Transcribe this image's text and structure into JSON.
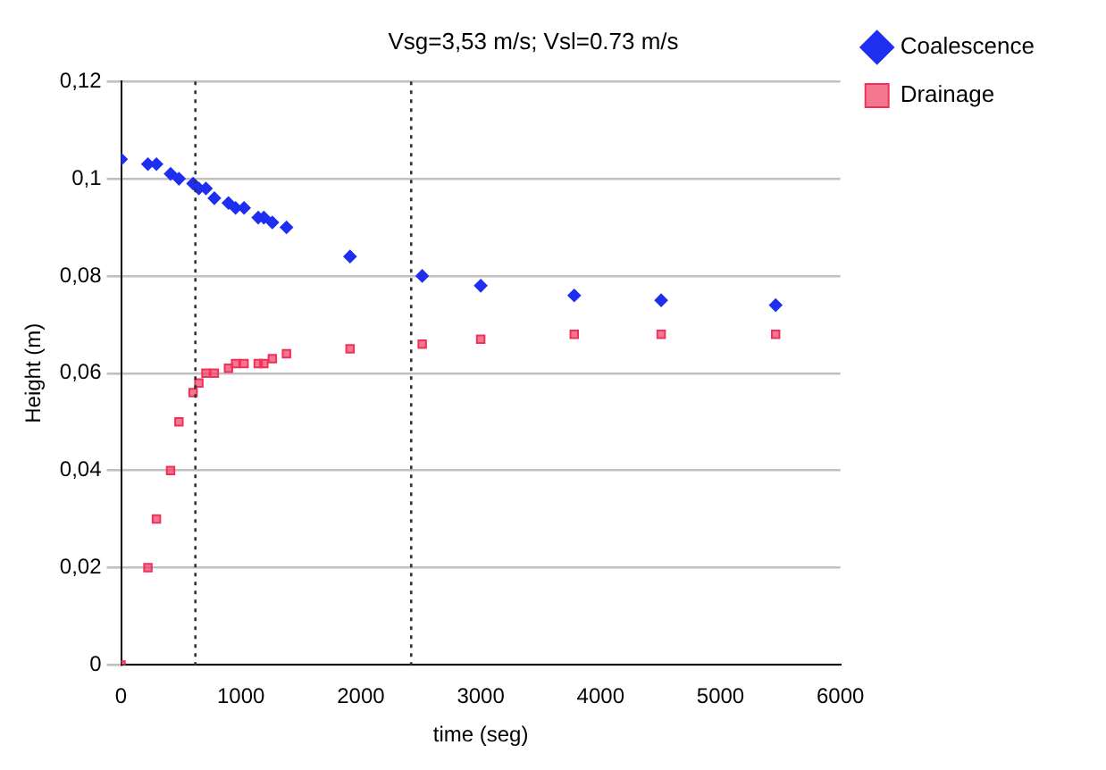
{
  "chart_data": {
    "type": "scatter",
    "title": "Vsg=3,53 m/s; Vsl=0.73 m/s",
    "xlabel": "time (seg)",
    "ylabel": "Height (m)",
    "x": [
      0,
      224,
      295,
      413,
      483,
      601,
      649,
      708,
      778,
      896,
      955,
      1026,
      1144,
      1191,
      1262,
      1380,
      1910,
      2512,
      3000,
      3780,
      4505,
      5460
    ],
    "series": [
      {
        "name": "Coalescence",
        "color": "#1f2ff0",
        "marker": "diamond",
        "values": [
          0.104,
          0.103,
          0.103,
          0.101,
          0.1,
          0.099,
          0.098,
          0.098,
          0.096,
          0.095,
          0.094,
          0.094,
          0.092,
          0.092,
          0.091,
          0.09,
          0.084,
          0.08,
          0.078,
          0.076,
          0.075,
          0.074
        ]
      },
      {
        "name": "Drainage",
        "color": "#f0325a",
        "marker": "square",
        "values": [
          0,
          0.02,
          0.03,
          0.04,
          0.05,
          0.056,
          0.058,
          0.06,
          0.06,
          0.061,
          0.062,
          0.062,
          0.062,
          0.062,
          0.063,
          0.064,
          0.065,
          0.066,
          0.067,
          0.068,
          0.068,
          0.068
        ]
      }
    ],
    "xlim": [
      0,
      6000
    ],
    "xticks": [
      0,
      1000,
      2000,
      3000,
      4000,
      5000,
      6000
    ],
    "ylim": [
      0,
      0.12
    ],
    "yticks": [
      {
        "value": 0,
        "label": "0"
      },
      {
        "value": 0.02,
        "label": "0,02"
      },
      {
        "value": 0.04,
        "label": "0,04"
      },
      {
        "value": 0.06,
        "label": "0,06"
      },
      {
        "value": 0.08,
        "label": "0,08"
      },
      {
        "value": 0.1,
        "label": "0,1"
      },
      {
        "value": 0.12,
        "label": "0,12"
      }
    ],
    "grid": "y",
    "legend": "top right",
    "ref_lines": [
      {
        "axis": "x",
        "value": 620,
        "line_style": "dotted",
        "color": "#333333"
      },
      {
        "axis": "x",
        "value": 2420,
        "line_style": "dotted",
        "color": "#333333"
      }
    ]
  }
}
